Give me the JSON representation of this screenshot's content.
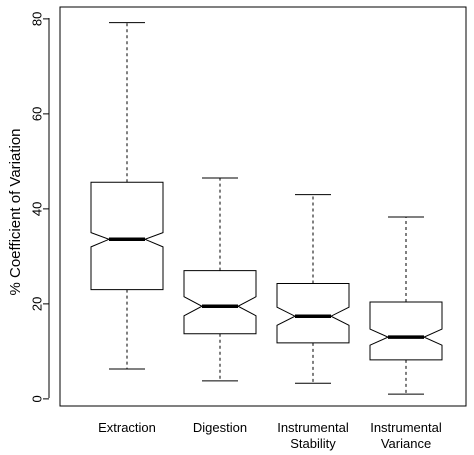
{
  "chart_data": {
    "type": "boxplot",
    "notched": true,
    "ylabel": "% Coefficient of Variation",
    "xlabel": "",
    "ylim": [
      -1.5,
      82.5
    ],
    "yticks": [
      0,
      20,
      40,
      60,
      80
    ],
    "categories": [
      [
        "Extraction"
      ],
      [
        "Digestion"
      ],
      [
        "Instrumental",
        "Stability"
      ],
      [
        "Instrumental",
        "Variance"
      ]
    ],
    "boxes": [
      {
        "whisker_low": 6.3,
        "q1": 23.0,
        "notch_low": 32.0,
        "median": 33.6,
        "notch_high": 35.0,
        "q3": 45.6,
        "whisker_high": 79.2
      },
      {
        "whisker_low": 3.8,
        "q1": 13.7,
        "notch_low": 17.5,
        "median": 19.5,
        "notch_high": 21.5,
        "q3": 27.0,
        "whisker_high": 46.5
      },
      {
        "whisker_low": 3.3,
        "q1": 11.8,
        "notch_low": 15.5,
        "median": 17.4,
        "notch_high": 19.3,
        "q3": 24.3,
        "whisker_high": 43.0
      },
      {
        "whisker_low": 1.0,
        "q1": 8.2,
        "notch_low": 11.3,
        "median": 13.0,
        "notch_high": 14.7,
        "q3": 20.4,
        "whisker_high": 38.3
      }
    ],
    "grid": false
  }
}
